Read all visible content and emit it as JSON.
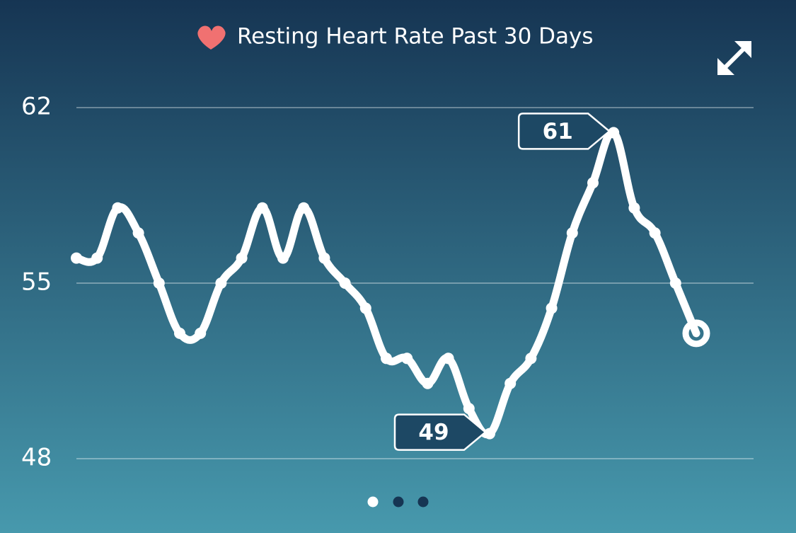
{
  "chart_data": {
    "type": "line",
    "title": "Resting Heart Rate Past 30 Days",
    "categories": [
      null,
      null,
      null,
      null,
      null,
      null,
      null,
      null,
      null,
      null,
      null,
      null,
      null,
      null,
      null,
      null,
      null,
      null,
      null,
      null,
      null,
      null,
      null,
      null,
      null,
      null,
      null,
      null,
      null,
      null,
      null
    ],
    "values": [
      56,
      56,
      58,
      57,
      55,
      53,
      53,
      55,
      56,
      58,
      56,
      58,
      56,
      55,
      54,
      52,
      52,
      51,
      52,
      50,
      49,
      51,
      52,
      54,
      57,
      59,
      61,
      58,
      57,
      55,
      53
    ],
    "color": "#ffffff",
    "ylim": [
      48,
      62
    ],
    "yticks": [
      48,
      55,
      62
    ],
    "grid": true
  }
}
